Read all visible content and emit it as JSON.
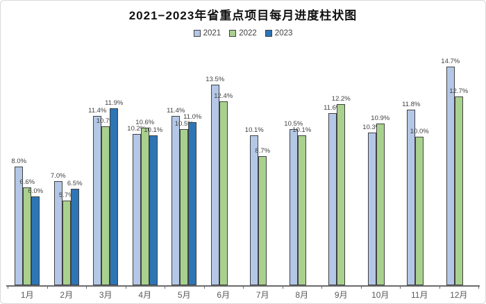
{
  "title": "2021−2023年省重点项目每月进度柱状图",
  "legend": {
    "items": [
      {
        "label": "2021",
        "color": "#B4C7E7"
      },
      {
        "label": "2022",
        "color": "#A9D18E"
      },
      {
        "label": "2023",
        "color": "#2E75B6"
      }
    ]
  },
  "chart_data": {
    "type": "bar",
    "title": "2021−2023年省重点项目每月进度柱状图",
    "categories": [
      "1月",
      "2月",
      "3月",
      "4月",
      "5月",
      "6月",
      "7月",
      "8月",
      "9月",
      "10月",
      "11月",
      "12月"
    ],
    "series": [
      {
        "name": "2021",
        "color": "#B4C7E7",
        "values": [
          8.0,
          7.0,
          11.4,
          10.2,
          11.4,
          13.5,
          10.1,
          10.5,
          11.6,
          10.3,
          11.8,
          14.7
        ]
      },
      {
        "name": "2022",
        "color": "#A9D18E",
        "values": [
          6.6,
          5.7,
          10.7,
          10.6,
          10.5,
          12.4,
          8.7,
          10.1,
          12.2,
          10.9,
          10.0,
          12.7
        ]
      },
      {
        "name": "2023",
        "color": "#2E75B6",
        "values": [
          6.0,
          6.5,
          11.9,
          10.1,
          11.0,
          null,
          null,
          null,
          null,
          null,
          null,
          null
        ]
      }
    ],
    "value_suffix": "%",
    "value_decimals": 1,
    "data_labels": true,
    "grid": false,
    "y_axis_visible": false,
    "ylim": [
      0,
      16
    ],
    "legend_position": "top"
  },
  "colors": {
    "bar_border": "#404040",
    "data_label": "#404040",
    "axis_line": "#6b6b6b",
    "axis_tick_label": "#595959",
    "background": "#ffffff",
    "frame_border": "#d9d9d9"
  }
}
